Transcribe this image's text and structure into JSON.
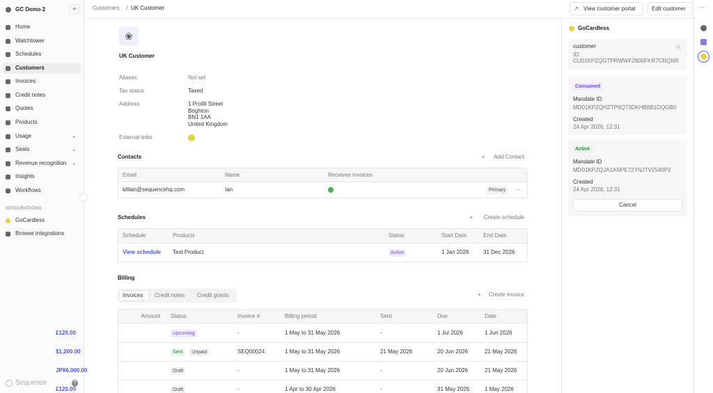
{
  "sidebar": {
    "org": "GC Demo 2",
    "nav": [
      "Home",
      "Watchtower",
      "Schedules",
      "Customers",
      "Invoices",
      "Credit notes",
      "Quotes",
      "Products",
      "Usage",
      "Seats",
      "Revenue recognition",
      "Insights",
      "Workflows"
    ],
    "integrations_heading": "INTEGRATIONS",
    "integrations": [
      "GoCardless",
      "Browse integrations"
    ],
    "brand": "Sequence",
    "help": "?"
  },
  "header": {
    "breadcrumb": [
      "Customers",
      "/",
      "UK Customer"
    ],
    "actions": [
      "View customer portal",
      "Edit customer"
    ]
  },
  "customer": {
    "name": "UK Customer",
    "details": [
      {
        "label": "Aliases",
        "value": [
          "Not set"
        ]
      },
      {
        "label": "Tax status",
        "value": [
          "Taxed"
        ]
      },
      {
        "label": "Address",
        "value": [
          "1 Profill Street",
          "Brighton",
          "BN1 1AA",
          "United Kingdom"
        ]
      },
      {
        "label": "External links"
      }
    ]
  },
  "contacts": {
    "title": "Contacts",
    "action": "Add Contact",
    "headers": [
      "Email",
      "Name",
      "Receives invoices"
    ],
    "rows": [
      {
        "cells": [
          "killian@sequencehq.com",
          "Ian"
        ],
        "badge": "Primary"
      }
    ]
  },
  "schedules": {
    "title": "Schedules",
    "action": "Create schedule",
    "headers": [
      "Schedule",
      "Products",
      "Status",
      "Start Date",
      "End Date"
    ],
    "rows": [
      [
        "View schedule",
        "Test Product",
        "Active",
        "1 Jan 2026",
        "31 Dec 2026"
      ]
    ]
  },
  "billing": {
    "title": "Billing",
    "tabs": [
      "Invoices",
      "Credit notes",
      "Credit grants"
    ],
    "action": "Create invoice",
    "headers": [
      "Amount",
      "Status",
      "Invoice #",
      "Billing period",
      "Sent",
      "Due",
      "Date"
    ],
    "rows": [
      {
        "amount": "£120.00",
        "status": [
          "Upcoming"
        ],
        "invoice": "-",
        "period": "1 May to 31 May 2026",
        "sent": "-",
        "due": "1 Jul 2026",
        "date": "1 Jun 2026"
      },
      {
        "amount": "$1,200.00",
        "status": [
          "Sent",
          "Unpaid"
        ],
        "invoice": "SEQ00024",
        "period": "1 May to 31 May 2026",
        "sent": "21 May 2026",
        "due": "20 Jun 2026",
        "date": "21 May 2026"
      },
      {
        "amount": "JP¥6,000.00",
        "status": [
          "Draft"
        ],
        "invoice": "-",
        "period": "1 May to 31 May 2026",
        "sent": "-",
        "due": "20 Jun 2026",
        "date": "21 May 2026"
      },
      {
        "amount": "£120.00",
        "status": [
          "Draft"
        ],
        "invoice": "-",
        "period": "1 Apr to 30 Apr 2026",
        "sent": "-",
        "due": "31 May 2026",
        "date": "1 May 2026"
      }
    ]
  },
  "panel": {
    "title": "GoCardless",
    "customer": {
      "label": "customer",
      "id_label": "ID:",
      "id": "CU01KPZQGTPRWWF2800FKR7CRQNR"
    },
    "mandates": [
      {
        "status": "Consumed",
        "id_label": "Mandate ID",
        "id": "MD01KPZQHZTP6Q73DKHB8B1DQGB0",
        "created_label": "Created",
        "created": "24 Apr 2026, 12:31"
      },
      {
        "status": "Active",
        "id_label": "Mandate ID",
        "id": "MD01KPZQJA1ANPE72YNJTV2540P2",
        "created_label": "Created",
        "created": "24 Apr 2026, 12:31",
        "button": "Cancel"
      }
    ]
  }
}
